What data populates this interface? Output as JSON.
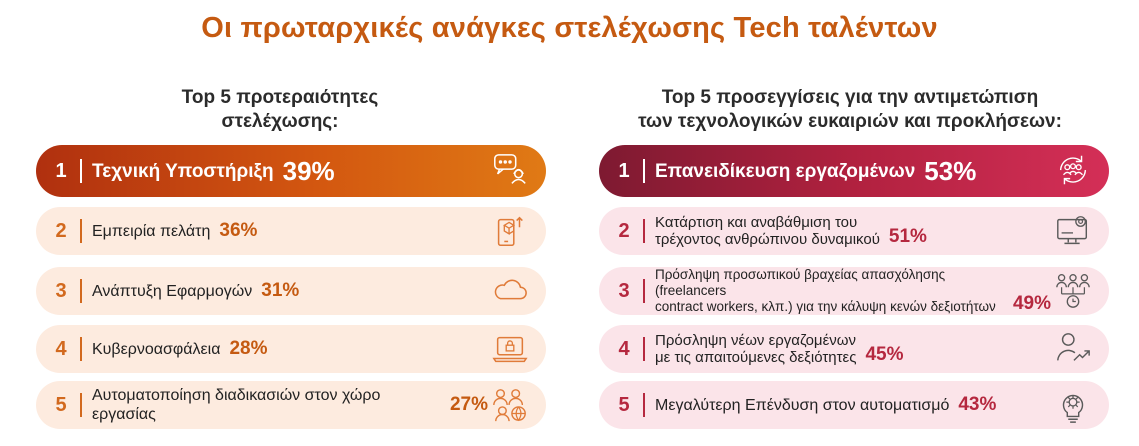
{
  "title": "Οι πρωταρχικές ανάγκες στελέχωσης Tech ταλέντων",
  "left_heading": [
    "Top 5 προτεραιότητες",
    "στελέχωσης:"
  ],
  "right_heading": [
    "Top 5 προσεγγίσεις για την αντιμετώπιση",
    "των τεχνολογικών ευκαιριών και προκλήσεων:"
  ],
  "colors": {
    "title": "#c55a11",
    "left_accent": "#d2691e",
    "left_row_bg": "#fdebdf",
    "right_accent": "#b5283f",
    "right_row_bg": "#fbe4e9"
  },
  "chart_data": [
    {
      "type": "table",
      "title": "Top 5 προτεραιότητες στελέχωσης:",
      "rows": [
        {
          "rank": "1",
          "label": [
            "Τεχνική Υποστήριξη"
          ],
          "value": 39,
          "value_label": "39%",
          "icon": "support-chat-icon"
        },
        {
          "rank": "2",
          "label": [
            "Εμπειρία πελάτη"
          ],
          "value": 36,
          "value_label": "36%",
          "icon": "mobile-box-icon"
        },
        {
          "rank": "3",
          "label": [
            "Ανάπτυξη Εφαρμογών"
          ],
          "value": 31,
          "value_label": "31%",
          "icon": "cloud-icon"
        },
        {
          "rank": "4",
          "label": [
            "Κυβερνοασφάλεια"
          ],
          "value": 28,
          "value_label": "28%",
          "icon": "laptop-lock-icon"
        },
        {
          "rank": "5",
          "label": [
            "Αυτοματοποίηση διαδικασιών στον χώρο εργασίας"
          ],
          "value": 27,
          "value_label": "27%",
          "icon": "people-globe-icon"
        }
      ]
    },
    {
      "type": "table",
      "title": "Top 5 προσεγγίσεις για την αντιμετώπιση των τεχνολογικών ευκαιριών και προκλήσεων:",
      "rows": [
        {
          "rank": "1",
          "label": [
            "Επανειδίκευση εργαζομένων"
          ],
          "value": 53,
          "value_label": "53%",
          "icon": "reskill-cycle-icon"
        },
        {
          "rank": "2",
          "label": [
            "Κατάρτιση και αναβάθμιση του",
            "τρέχοντος ανθρώπινου δυναμικού"
          ],
          "value": 51,
          "value_label": "51%",
          "icon": "monitor-gear-icon"
        },
        {
          "rank": "3",
          "label": [
            "Πρόσληψη προσωπικού βραχείας απασχόλησης (freelancers",
            "contract workers, κλπ.) για την κάλυψη κενών δεξιοτήτων"
          ],
          "value": 49,
          "value_label": "49%",
          "icon": "team-clock-icon"
        },
        {
          "rank": "4",
          "label": [
            "Πρόσληψη νέων εργαζομένων",
            "με τις απαιτούμενες δεξιότητες"
          ],
          "value": 45,
          "value_label": "45%",
          "icon": "person-growth-icon"
        },
        {
          "rank": "5",
          "label": [
            "Μεγαλύτερη Επένδυση στον αυτοματισμό"
          ],
          "value": 43,
          "value_label": "43%",
          "icon": "bulb-gear-icon"
        }
      ]
    }
  ]
}
